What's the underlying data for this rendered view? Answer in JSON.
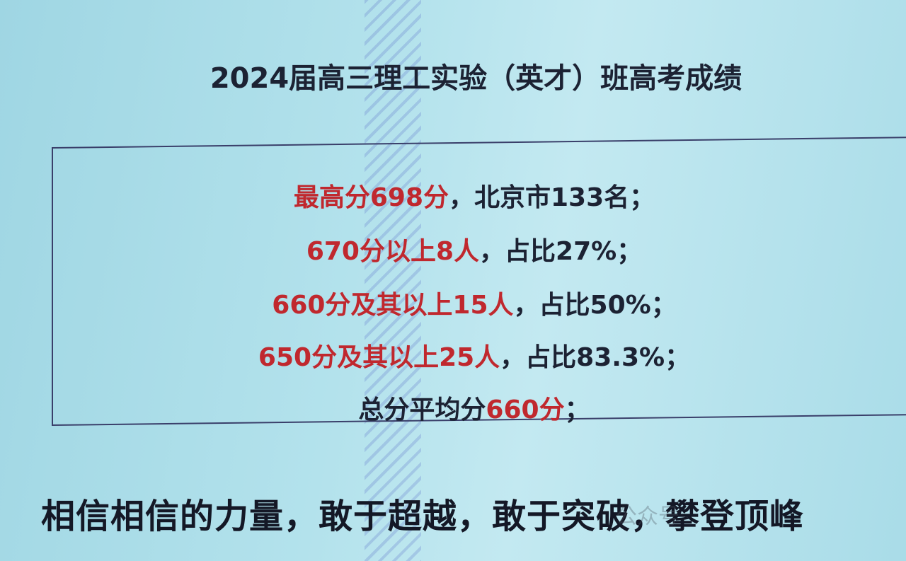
{
  "title": "2024届高三理工实验（英才）班高考成绩",
  "lines": [
    {
      "red": "最高分698分",
      "dark": "，北京市133名；",
      "red2": ""
    },
    {
      "red": "670分以上8人",
      "dark": "，占比27%；",
      "red2": ""
    },
    {
      "red": "660分及其以上15人",
      "dark": "，占比50%；",
      "red2": ""
    },
    {
      "red": "650分及其以上25人",
      "dark": "，占比83.3%；",
      "red2": ""
    },
    {
      "dark_pre": "总分平均分",
      "red": "660分",
      "dark": "；"
    }
  ],
  "motto": "相信相信的力量，敢于超越，敢于突破，攀登顶峰",
  "watermark": "公众号",
  "colors": {
    "accent_red": "#c0282e",
    "text_dark": "#1c2233",
    "background": "#b3e2ec"
  }
}
